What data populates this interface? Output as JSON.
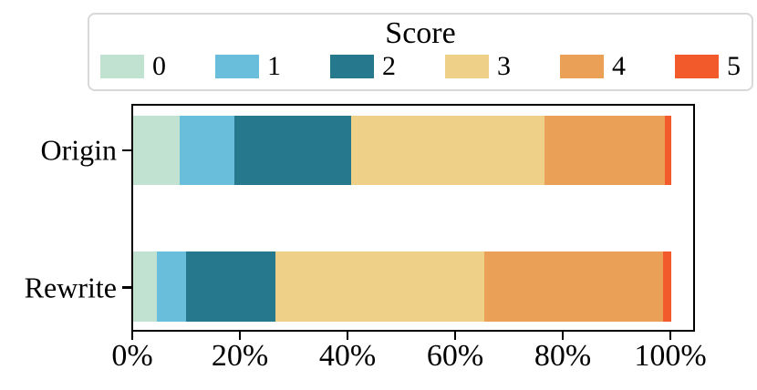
{
  "chart_data": {
    "type": "bar",
    "variant": "horizontal-stacked-percentage",
    "legend_title": "Score",
    "legend_position": "top",
    "grid": false,
    "categories": [
      "Origin",
      "Rewrite"
    ],
    "series": [
      {
        "name": "0",
        "color": "#c1e2d1",
        "values": [
          8.6,
          4.4
        ]
      },
      {
        "name": "1",
        "color": "#69bedb",
        "values": [
          10.2,
          5.4
        ]
      },
      {
        "name": "2",
        "color": "#26798c",
        "values": [
          21.7,
          16.7
        ]
      },
      {
        "name": "3",
        "color": "#eed089",
        "values": [
          35.9,
          38.8
        ]
      },
      {
        "name": "4",
        "color": "#eaa056",
        "values": [
          22.5,
          33.2
        ]
      },
      {
        "name": "5",
        "color": "#f2592b",
        "values": [
          1.1,
          1.5
        ]
      }
    ],
    "x_tick_labels": [
      "0%",
      "20%",
      "40%",
      "60%",
      "80%",
      "100%"
    ],
    "x_tick_values": [
      0,
      20,
      40,
      60,
      80,
      100
    ],
    "xlim": [
      0,
      104.7
    ],
    "axis_color": "#000000"
  }
}
